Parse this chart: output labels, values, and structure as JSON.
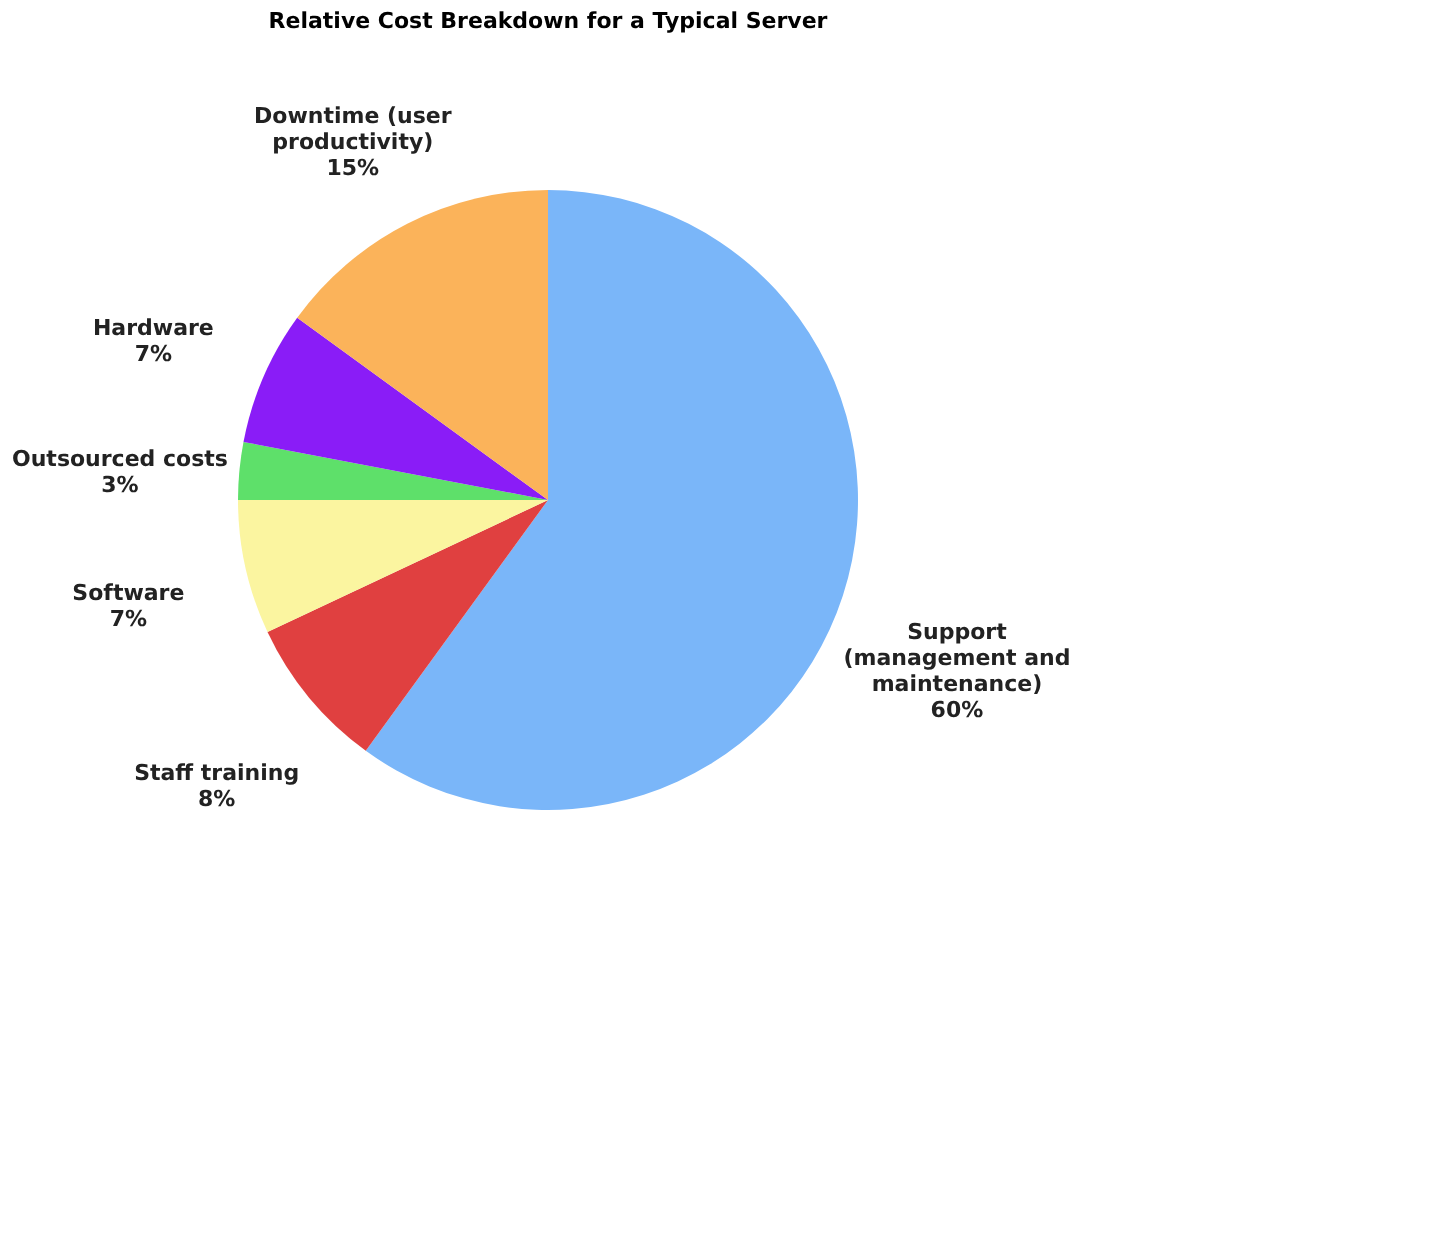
{
  "chart_data": {
    "type": "pie",
    "title": "Relative Cost Breakdown for a Typical Server",
    "categories": [
      "Support (management and maintenance)",
      "Staff training",
      "Software",
      "Outsourced costs",
      "Hardware",
      "Downtime (user productivity)"
    ],
    "values": [
      60,
      8,
      7,
      3,
      7,
      15
    ],
    "value_labels": [
      "60%",
      "8%",
      "7%",
      "3%",
      "7%",
      "15%"
    ],
    "colors": [
      "#7ab6f9",
      "#e04040",
      "#fbf5a0",
      "#5ee06a",
      "#8a1cf7",
      "#fbb35a"
    ],
    "legend": false
  }
}
